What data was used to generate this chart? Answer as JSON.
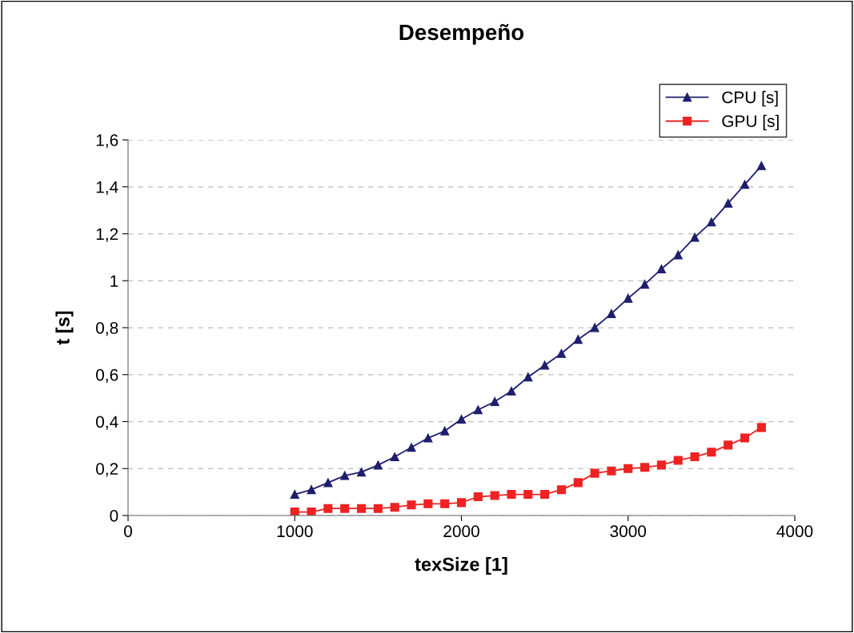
{
  "chart_data": {
    "type": "line",
    "title": "Desempeño",
    "xlabel": "texSize [1]",
    "ylabel": "t [s]",
    "x": [
      1000,
      1100,
      1200,
      1300,
      1400,
      1500,
      1600,
      1700,
      1800,
      1900,
      2000,
      2100,
      2200,
      2300,
      2400,
      2500,
      2600,
      2700,
      2800,
      2900,
      3000,
      3100,
      3200,
      3300,
      3400,
      3500,
      3600,
      3700,
      3800
    ],
    "series": [
      {
        "name": "CPU [s]",
        "color": "#1f1f6e",
        "marker": "triangle",
        "values": [
          0.09,
          0.11,
          0.14,
          0.17,
          0.185,
          0.215,
          0.25,
          0.29,
          0.33,
          0.36,
          0.41,
          0.45,
          0.485,
          0.53,
          0.59,
          0.64,
          0.69,
          0.75,
          0.8,
          0.86,
          0.925,
          0.985,
          1.05,
          1.11,
          1.185,
          1.25,
          1.33,
          1.41,
          1.49
        ]
      },
      {
        "name": "GPU [s]",
        "color": "#ee2222",
        "marker": "square",
        "values": [
          0.015,
          0.015,
          0.03,
          0.03,
          0.03,
          0.03,
          0.035,
          0.045,
          0.05,
          0.05,
          0.055,
          0.08,
          0.085,
          0.09,
          0.09,
          0.09,
          0.11,
          0.14,
          0.18,
          0.19,
          0.2,
          0.205,
          0.215,
          0.235,
          0.25,
          0.27,
          0.3,
          0.33,
          0.375
        ]
      }
    ],
    "xlim": [
      0,
      4000
    ],
    "xticks": [
      0,
      1000,
      2000,
      3000,
      4000
    ],
    "ylim": [
      0,
      1.6
    ],
    "yticks": [
      0,
      {
        "value": 0.2,
        "label": "0,2"
      },
      {
        "value": 0.4,
        "label": "0,4"
      },
      {
        "value": 0.6,
        "label": "0,6"
      },
      {
        "value": 0.8,
        "label": "0,8"
      },
      1,
      {
        "value": 1.2,
        "label": "1,2"
      },
      {
        "value": 1.4,
        "label": "1,4"
      },
      {
        "value": 1.6,
        "label": "1,6"
      }
    ],
    "grid": "y",
    "legend": "top right",
    "line_style": "solid"
  }
}
